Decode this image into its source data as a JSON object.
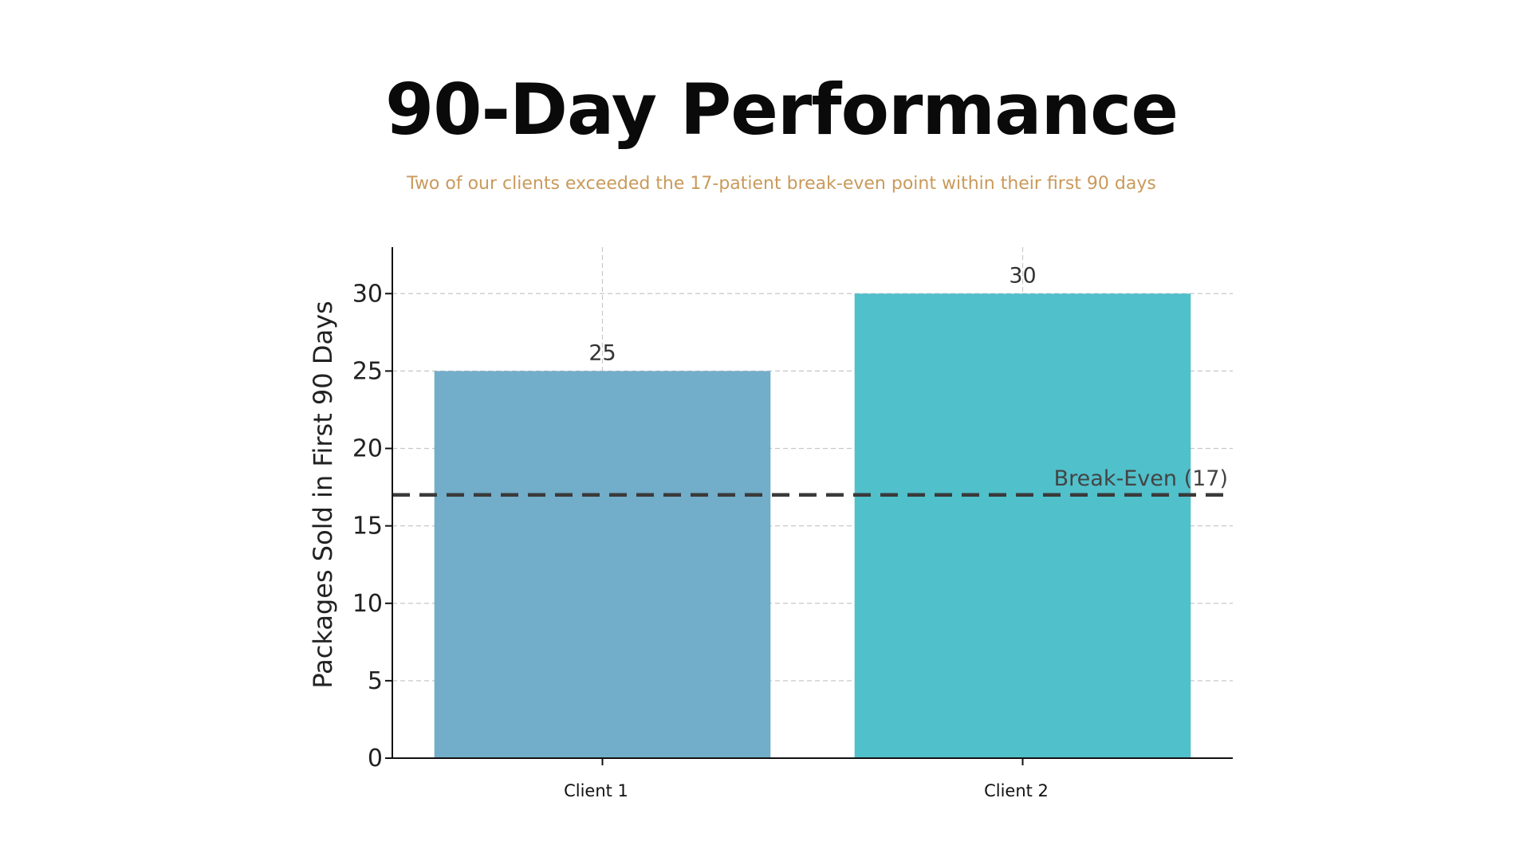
{
  "page": {
    "title": "90-Day Performance",
    "subtitle": "Two of our clients exceeded the 17-patient break-even point within their first 90 days"
  },
  "chart_data": {
    "type": "bar",
    "categories": [
      "Client 1",
      "Client 2"
    ],
    "values": [
      25,
      30
    ],
    "data_labels": [
      "25",
      "30"
    ],
    "bar_colors": [
      "#72adc9",
      "#50c0cb"
    ],
    "ylabel": "Packages Sold in First 90 Days",
    "xlabel": "",
    "ylim": [
      0,
      33
    ],
    "yticks": [
      0,
      5,
      10,
      15,
      20,
      25,
      30
    ],
    "grid": true,
    "reference_line": {
      "value": 17,
      "label": "Break-Even (17)",
      "style": "dashed",
      "color": "#3a3a3a"
    }
  }
}
